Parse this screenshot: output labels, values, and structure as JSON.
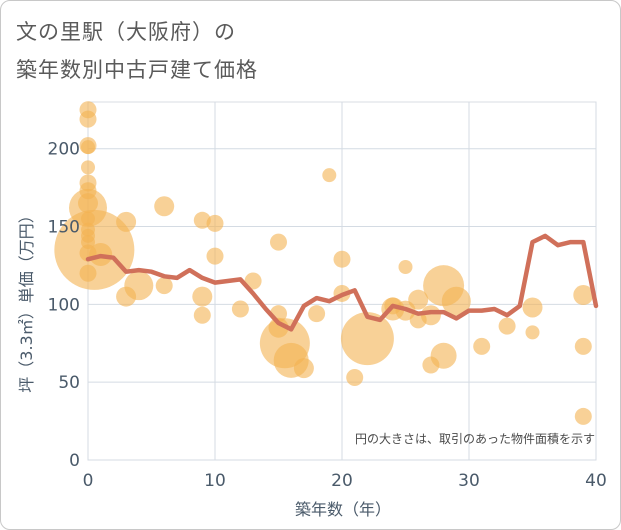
{
  "title_line1": "文の里駅（大阪府）の",
  "title_line2": "築年数別中古戸建て価格",
  "chart_data": {
    "type": "scatter+line",
    "xlabel": "築年数（年）",
    "ylabel": "坪（3.3㎡）単価（万円）",
    "xlim": [
      0,
      40
    ],
    "ylim": [
      0,
      230
    ],
    "xticks": [
      0,
      10,
      20,
      30,
      40
    ],
    "yticks": [
      0,
      50,
      100,
      150,
      200
    ],
    "note": "円の大きさは、取引のあった物件面積を示す",
    "bubble_color": "#f4b251",
    "line_color": "#d0705a",
    "bubbles": [
      {
        "x": 0,
        "y": 225,
        "s": 3
      },
      {
        "x": 0,
        "y": 219,
        "s": 3
      },
      {
        "x": 0,
        "y": 202,
        "s": 3
      },
      {
        "x": 0,
        "y": 201,
        "s": 2
      },
      {
        "x": 0,
        "y": 188,
        "s": 2
      },
      {
        "x": 0,
        "y": 178,
        "s": 3
      },
      {
        "x": 0,
        "y": 173,
        "s": 3
      },
      {
        "x": 0,
        "y": 165,
        "s": 4
      },
      {
        "x": 0,
        "y": 155,
        "s": 2
      },
      {
        "x": 0,
        "y": 148,
        "s": 2
      },
      {
        "x": 0,
        "y": 144,
        "s": 2
      },
      {
        "x": 0,
        "y": 140,
        "s": 2
      },
      {
        "x": 0,
        "y": 120,
        "s": 3
      },
      {
        "x": 0,
        "y": 133,
        "s": 3
      },
      {
        "x": 0,
        "y": 162,
        "s": 10
      },
      {
        "x": 0.5,
        "y": 135,
        "s": 24
      },
      {
        "x": 1,
        "y": 132,
        "s": 5
      },
      {
        "x": 3,
        "y": 153,
        "s": 4
      },
      {
        "x": 3,
        "y": 105,
        "s": 4
      },
      {
        "x": 4,
        "y": 112,
        "s": 7
      },
      {
        "x": 6,
        "y": 163,
        "s": 4
      },
      {
        "x": 6,
        "y": 112,
        "s": 3
      },
      {
        "x": 9,
        "y": 154,
        "s": 3
      },
      {
        "x": 9,
        "y": 105,
        "s": 4
      },
      {
        "x": 9,
        "y": 93,
        "s": 3
      },
      {
        "x": 10,
        "y": 152,
        "s": 3
      },
      {
        "x": 10,
        "y": 131,
        "s": 3
      },
      {
        "x": 12,
        "y": 97,
        "s": 3
      },
      {
        "x": 13,
        "y": 115,
        "s": 3
      },
      {
        "x": 15,
        "y": 140,
        "s": 3
      },
      {
        "x": 15,
        "y": 94,
        "s": 3
      },
      {
        "x": 15,
        "y": 85,
        "s": 4
      },
      {
        "x": 15.5,
        "y": 75,
        "s": 14
      },
      {
        "x": 16,
        "y": 64,
        "s": 9
      },
      {
        "x": 17,
        "y": 59,
        "s": 4
      },
      {
        "x": 18,
        "y": 94,
        "s": 3
      },
      {
        "x": 19,
        "y": 183,
        "s": 2
      },
      {
        "x": 20,
        "y": 129,
        "s": 3
      },
      {
        "x": 20,
        "y": 107,
        "s": 3
      },
      {
        "x": 21,
        "y": 53,
        "s": 3
      },
      {
        "x": 22,
        "y": 78,
        "s": 15
      },
      {
        "x": 24,
        "y": 99,
        "s": 3
      },
      {
        "x": 24,
        "y": 97,
        "s": 5
      },
      {
        "x": 25,
        "y": 124,
        "s": 2
      },
      {
        "x": 25,
        "y": 96,
        "s": 4
      },
      {
        "x": 26,
        "y": 103,
        "s": 4
      },
      {
        "x": 26,
        "y": 90,
        "s": 3
      },
      {
        "x": 27,
        "y": 93,
        "s": 4
      },
      {
        "x": 27,
        "y": 61,
        "s": 3
      },
      {
        "x": 28,
        "y": 112,
        "s": 11
      },
      {
        "x": 28,
        "y": 67,
        "s": 6
      },
      {
        "x": 29,
        "y": 102,
        "s": 7
      },
      {
        "x": 31,
        "y": 73,
        "s": 3
      },
      {
        "x": 33,
        "y": 86,
        "s": 3
      },
      {
        "x": 35,
        "y": 98,
        "s": 4
      },
      {
        "x": 35,
        "y": 82,
        "s": 2
      },
      {
        "x": 39,
        "y": 106,
        "s": 4
      },
      {
        "x": 39,
        "y": 73,
        "s": 3
      },
      {
        "x": 39,
        "y": 28,
        "s": 3
      }
    ],
    "line": {
      "x": [
        0,
        1,
        2,
        3,
        4,
        5,
        6,
        7,
        8,
        9,
        10,
        11,
        12,
        13,
        14,
        15,
        16,
        17,
        18,
        19,
        20,
        21,
        22,
        23,
        24,
        25,
        26,
        27,
        28,
        29,
        30,
        31,
        32,
        33,
        34,
        35,
        36,
        37,
        38,
        39,
        40
      ],
      "y": [
        129,
        131,
        130,
        121,
        122,
        121,
        118,
        117,
        122,
        117,
        114,
        115,
        116,
        107,
        97,
        88,
        84,
        99,
        104,
        102,
        106,
        109,
        92,
        90,
        99,
        97,
        94,
        95,
        95,
        91,
        96,
        96,
        97,
        93,
        99,
        140,
        144,
        138,
        140,
        140,
        99
      ]
    }
  }
}
